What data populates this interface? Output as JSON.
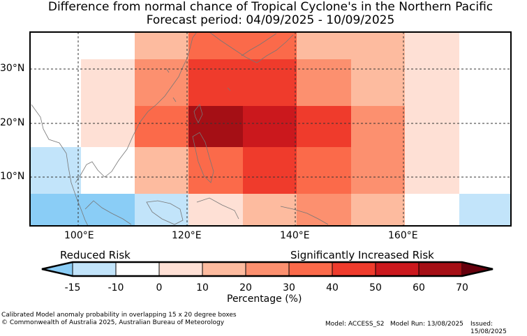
{
  "title": {
    "line1": "Difference from normal chance of Tropical Cyclone's in the Northern Pacific",
    "line2": "Forecast period: 04/09/2025 - 10/09/2025"
  },
  "map": {
    "lon_ticks": [
      "100°E",
      "120°E",
      "140°E",
      "160°E"
    ],
    "lat_ticks": [
      "30°N",
      "20°N",
      "10°N"
    ]
  },
  "colorbar": {
    "left_label": "Reduced Risk",
    "right_label": "Significantly Increased Risk",
    "ticks": [
      "-15",
      "-10",
      "0",
      "10",
      "20",
      "30",
      "40",
      "50",
      "60",
      "70"
    ],
    "title": "Percentage (%)",
    "colors": [
      "#8acdf6",
      "#c2e4fa",
      "#ffffff",
      "#fee0d5",
      "#fdbb9f",
      "#fc906f",
      "#fb6a4a",
      "#ef3b2c",
      "#cb181d",
      "#a50f15",
      "#67000d"
    ]
  },
  "footer": {
    "note": "Calibrated Model anomaly probability in overlapping 15 x 20 degree boxes",
    "copyright": "© Commonwealth of Australia 2025, Australian Bureau of Meteorology",
    "model": "Model: ACCESS_S2",
    "run": "Model Run: 13/08/2025",
    "issued": "Issued: 15/08/2025"
  }
}
